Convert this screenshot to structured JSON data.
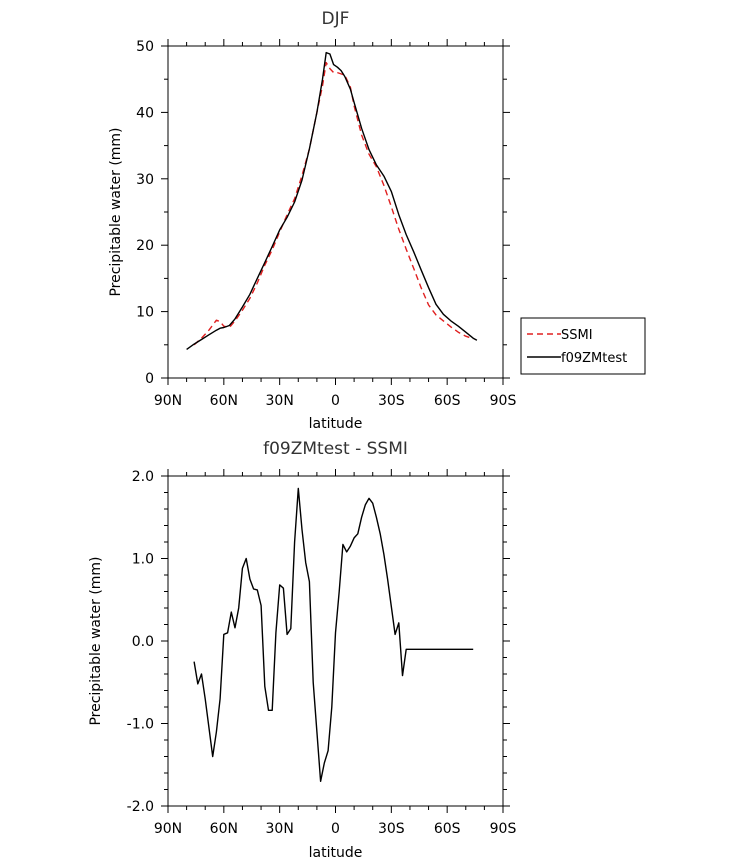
{
  "chart_data": [
    {
      "type": "line",
      "title": "DJF",
      "xlabel": "latitude",
      "ylabel": "Precipitable water (mm)",
      "xlim": [
        -90,
        90
      ],
      "ylim": [
        0,
        50
      ],
      "xticks": [
        -90,
        -60,
        -30,
        0,
        30,
        60,
        90
      ],
      "xtick_labels": [
        "90N",
        "60N",
        "30N",
        "0",
        "30S",
        "60S",
        "90S"
      ],
      "yticks": [
        0,
        10,
        20,
        30,
        40,
        50
      ],
      "ytick_labels": [
        "0",
        "10",
        "20",
        "30",
        "40",
        "50"
      ],
      "legend": {
        "placement": "right"
      },
      "series": [
        {
          "name": "SSMI",
          "color": "#e02020",
          "dash": "dashed",
          "x": [
            -76,
            -72,
            -68,
            -64,
            -62,
            -60,
            -57,
            -54,
            -50,
            -46,
            -42,
            -38,
            -34,
            -30,
            -26,
            -22,
            -18,
            -14,
            -10,
            -7,
            -5,
            -3,
            -1,
            1,
            3,
            5,
            8,
            10,
            14,
            18,
            22,
            26,
            30,
            34,
            38,
            42,
            46,
            50,
            54,
            58,
            62,
            66,
            70,
            74
          ],
          "y": [
            5.0,
            6.0,
            7.2,
            8.7,
            8.5,
            7.8,
            7.6,
            8.6,
            10.2,
            12.0,
            14.3,
            17.0,
            19.3,
            22.0,
            24.6,
            27.0,
            30.5,
            34.5,
            40.0,
            44.0,
            47.5,
            46.6,
            46.0,
            46.0,
            45.8,
            45.6,
            43.8,
            41.0,
            36.6,
            33.7,
            31.8,
            29.0,
            25.8,
            22.4,
            19.4,
            16.5,
            13.6,
            11.0,
            9.5,
            8.6,
            7.7,
            6.9,
            6.3,
            5.9
          ]
        },
        {
          "name": "f09ZMtest",
          "color": "#000000",
          "dash": "solid",
          "x": [
            -80,
            -76,
            -72,
            -68,
            -64,
            -62,
            -60,
            -57,
            -54,
            -50,
            -46,
            -42,
            -38,
            -34,
            -30,
            -26,
            -22,
            -18,
            -14,
            -10,
            -7,
            -5,
            -3,
            -1,
            1,
            3,
            5,
            8,
            10,
            14,
            18,
            22,
            26,
            30,
            34,
            38,
            42,
            46,
            50,
            54,
            58,
            62,
            66,
            70,
            74,
            76
          ],
          "y": [
            4.3,
            5.1,
            5.8,
            6.5,
            7.2,
            7.5,
            7.6,
            7.9,
            8.9,
            10.7,
            12.6,
            15.0,
            17.4,
            19.8,
            22.3,
            24.2,
            26.5,
            29.8,
            34.5,
            40.0,
            45.0,
            49.0,
            48.8,
            47.2,
            46.8,
            46.3,
            45.4,
            43.5,
            41.5,
            37.6,
            34.4,
            32.1,
            30.4,
            28.1,
            24.6,
            21.6,
            19.0,
            16.3,
            13.6,
            11.1,
            9.6,
            8.6,
            7.8,
            6.9,
            6.0,
            5.7
          ]
        }
      ]
    },
    {
      "type": "line",
      "title": "f09ZMtest - SSMI",
      "xlabel": "latitude",
      "ylabel": "Precipitable water (mm)",
      "xlim": [
        -90,
        90
      ],
      "ylim": [
        -2.0,
        2.0
      ],
      "xticks": [
        -90,
        -60,
        -30,
        0,
        30,
        60,
        90
      ],
      "xtick_labels": [
        "90N",
        "60N",
        "30N",
        "0",
        "30S",
        "60S",
        "90S"
      ],
      "yticks": [
        -2.0,
        -1.0,
        0.0,
        1.0,
        2.0
      ],
      "ytick_labels": [
        "-2.0",
        "-1.0",
        "0.0",
        "1.0",
        "2.0"
      ],
      "series": [
        {
          "name": "",
          "color": "#000000",
          "dash": "solid",
          "x": [
            -76,
            -74,
            -72,
            -70,
            -66,
            -64,
            -62,
            -60,
            -58,
            -56,
            -54,
            -52,
            -50,
            -48,
            -46,
            -44,
            -42,
            -40,
            -38,
            -36,
            -34,
            -32,
            -30,
            -28,
            -26,
            -24,
            -22,
            -20,
            -18,
            -16,
            -14,
            -12,
            -10,
            -8,
            -6,
            -4,
            -2,
            0,
            2,
            4,
            6,
            8,
            10,
            12,
            14,
            16,
            18,
            20,
            22,
            24,
            26,
            28,
            30,
            32,
            34,
            36,
            38,
            40,
            42,
            44,
            46,
            48,
            50,
            52,
            54,
            56,
            58,
            60,
            62,
            64,
            66,
            68,
            70,
            72,
            74
          ],
          "y": [
            -0.25,
            -0.52,
            -0.4,
            -0.7,
            -1.4,
            -1.1,
            -0.7,
            0.08,
            0.1,
            0.35,
            0.16,
            0.4,
            0.88,
            1.0,
            0.75,
            0.63,
            0.62,
            0.43,
            -0.55,
            -0.84,
            -0.84,
            0.1,
            0.68,
            0.64,
            0.08,
            0.15,
            1.2,
            1.85,
            1.35,
            0.95,
            0.72,
            -0.5,
            -1.1,
            -1.7,
            -1.48,
            -1.33,
            -0.8,
            0.1,
            0.6,
            1.17,
            1.08,
            1.15,
            1.25,
            1.3,
            1.5,
            1.65,
            1.73,
            1.67,
            1.5,
            1.3,
            1.05,
            0.75,
            0.42,
            0.08,
            0.22,
            -0.42,
            -0.1,
            -0.1,
            -0.1,
            -0.1,
            -0.1,
            -0.1,
            -0.1,
            -0.1,
            -0.1,
            -0.1,
            -0.1,
            -0.1,
            -0.1,
            -0.1,
            -0.1,
            -0.1,
            -0.1,
            -0.1,
            -0.1
          ]
        }
      ]
    }
  ]
}
